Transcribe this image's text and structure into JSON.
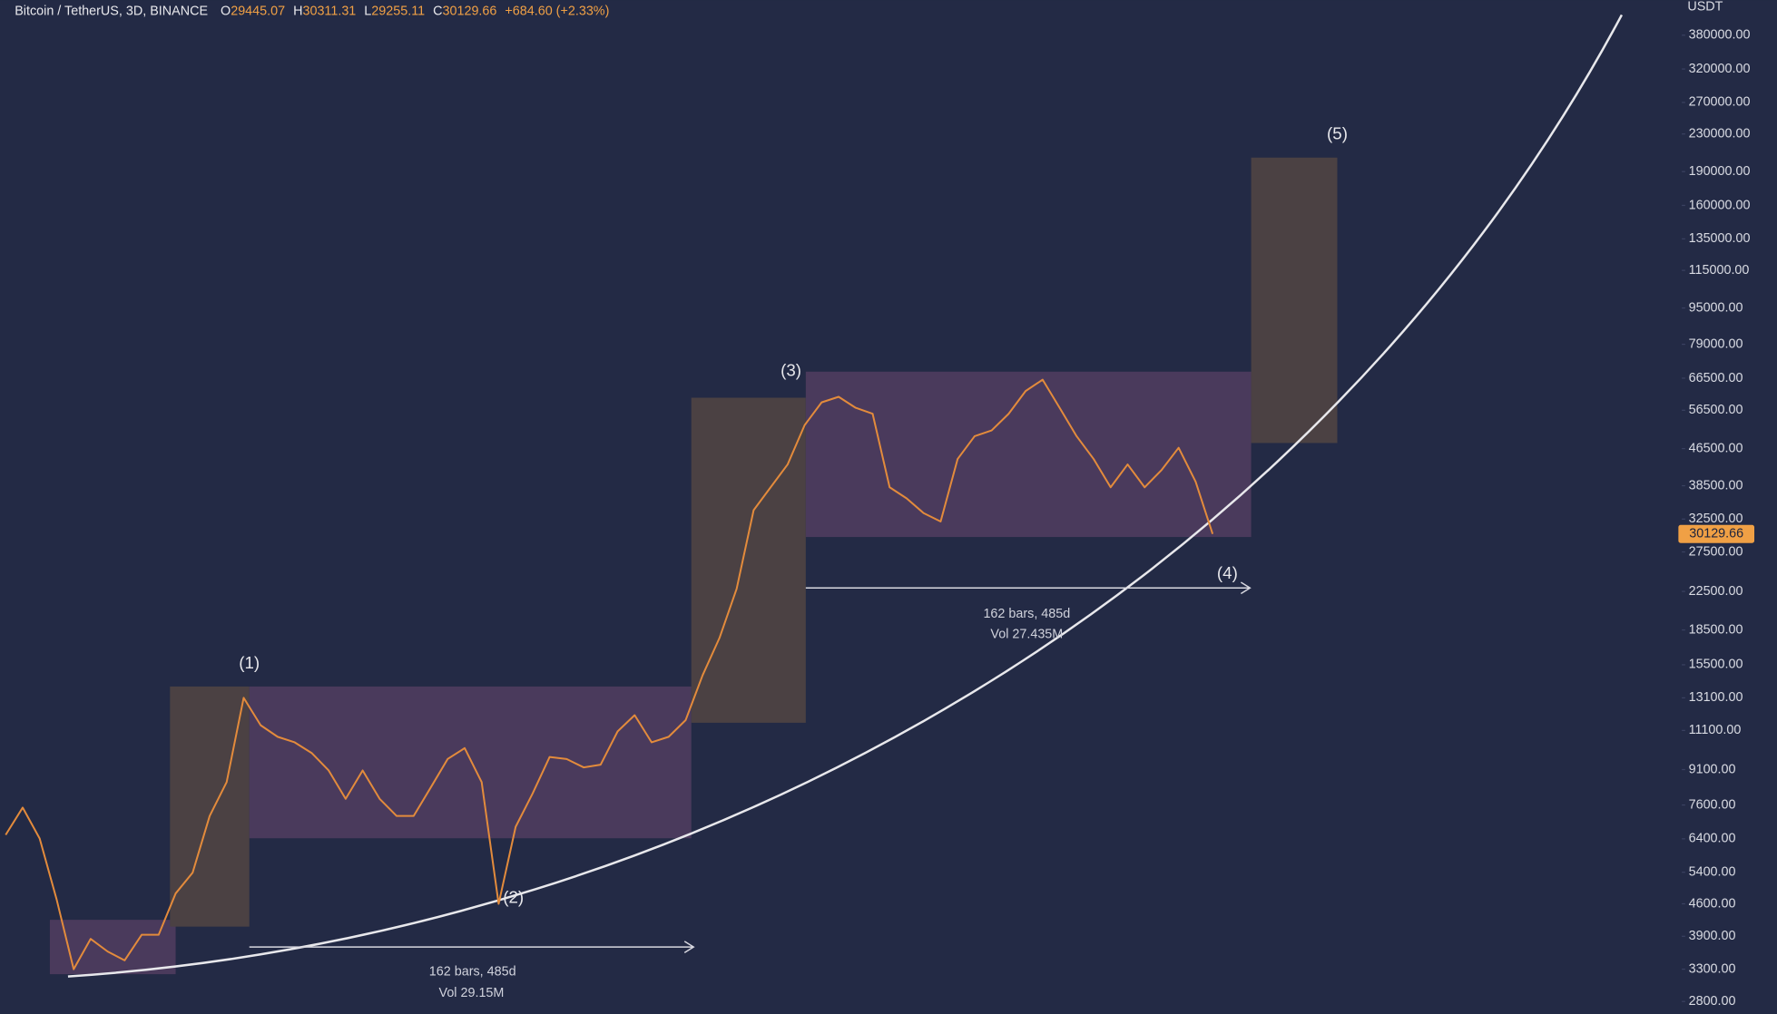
{
  "header": {
    "symbol": "Bitcoin / TetherUS, 3D, BINANCE",
    "open_label": "O",
    "open": 29445.07,
    "high_label": "H",
    "high": 30311.31,
    "low_label": "L",
    "low": 29255.11,
    "close_label": "C",
    "close": 30129.66,
    "change": "+684.60 (+2.33%)"
  },
  "chart_data": {
    "type": "line",
    "ylabel": "USDT",
    "log_scale": true,
    "ylim": [
      2630,
      454000
    ],
    "yticks": [
      {
        "value": 380000,
        "label": "380000.00"
      },
      {
        "value": 320000,
        "label": "320000.00"
      },
      {
        "value": 270000,
        "label": "270000.00"
      },
      {
        "value": 230000,
        "label": "230000.00"
      },
      {
        "value": 190000,
        "label": "190000.00"
      },
      {
        "value": 160000,
        "label": "160000.00"
      },
      {
        "value": 135000,
        "label": "135000.00"
      },
      {
        "value": 115000,
        "label": "115000.00"
      },
      {
        "value": 95000,
        "label": "95000.00"
      },
      {
        "value": 79000,
        "label": "79000.00"
      },
      {
        "value": 66500,
        "label": "66500.00"
      },
      {
        "value": 56500,
        "label": "56500.00"
      },
      {
        "value": 46500,
        "label": "46500.00"
      },
      {
        "value": 38500,
        "label": "38500.00"
      },
      {
        "value": 32500,
        "label": "32500.00"
      },
      {
        "value": 27500,
        "label": "27500.00"
      },
      {
        "value": 22500,
        "label": "22500.00"
      },
      {
        "value": 18500,
        "label": "18500.00"
      },
      {
        "value": 15500,
        "label": "15500.00"
      },
      {
        "value": 13100,
        "label": "13100.00"
      },
      {
        "value": 11100,
        "label": "11100.00"
      },
      {
        "value": 9100,
        "label": "9100.00"
      },
      {
        "value": 7600,
        "label": "7600.00"
      },
      {
        "value": 6400,
        "label": "6400.00"
      },
      {
        "value": 5400,
        "label": "5400.00"
      },
      {
        "value": 4600,
        "label": "4600.00"
      },
      {
        "value": 3900,
        "label": "3900.00"
      },
      {
        "value": 3300,
        "label": "3300.00"
      },
      {
        "value": 2800,
        "label": "2800.00"
      }
    ],
    "series": [
      {
        "color": "#e38b3c",
        "values": [
          6530,
          7500,
          6410,
          4700,
          3300,
          3850,
          3610,
          3450,
          3930,
          3930,
          4850,
          5390,
          7190,
          8540,
          13100,
          11400,
          10750,
          10450,
          9900,
          9060,
          7840,
          9060,
          7840,
          7190,
          7190,
          8300,
          9600,
          10150,
          8540,
          4600,
          6800,
          8060,
          9700,
          9600,
          9200,
          9330,
          11050,
          12000,
          10450,
          10750,
          11700,
          14700,
          17800,
          22800,
          34000,
          38200,
          42900,
          52400,
          58800,
          60500,
          57200,
          55500,
          38200,
          36100,
          33500,
          32100,
          44100,
          49500,
          51000,
          55500,
          62300,
          66000,
          57200,
          49500,
          44100,
          38200,
          42900,
          38200,
          41700,
          46700,
          39300,
          30129.66
        ]
      }
    ],
    "last_price": 30129.66,
    "last_price_color": "#f0a045",
    "annotations": [
      "(1)",
      "(2)",
      "(3)",
      "(4)",
      "(5)"
    ],
    "measures": [
      {
        "bars": "162 bars, 485d",
        "volume": "Vol 29.15M"
      },
      {
        "bars": "162 bars, 485d",
        "volume": "Vol 27.435M"
      }
    ]
  }
}
